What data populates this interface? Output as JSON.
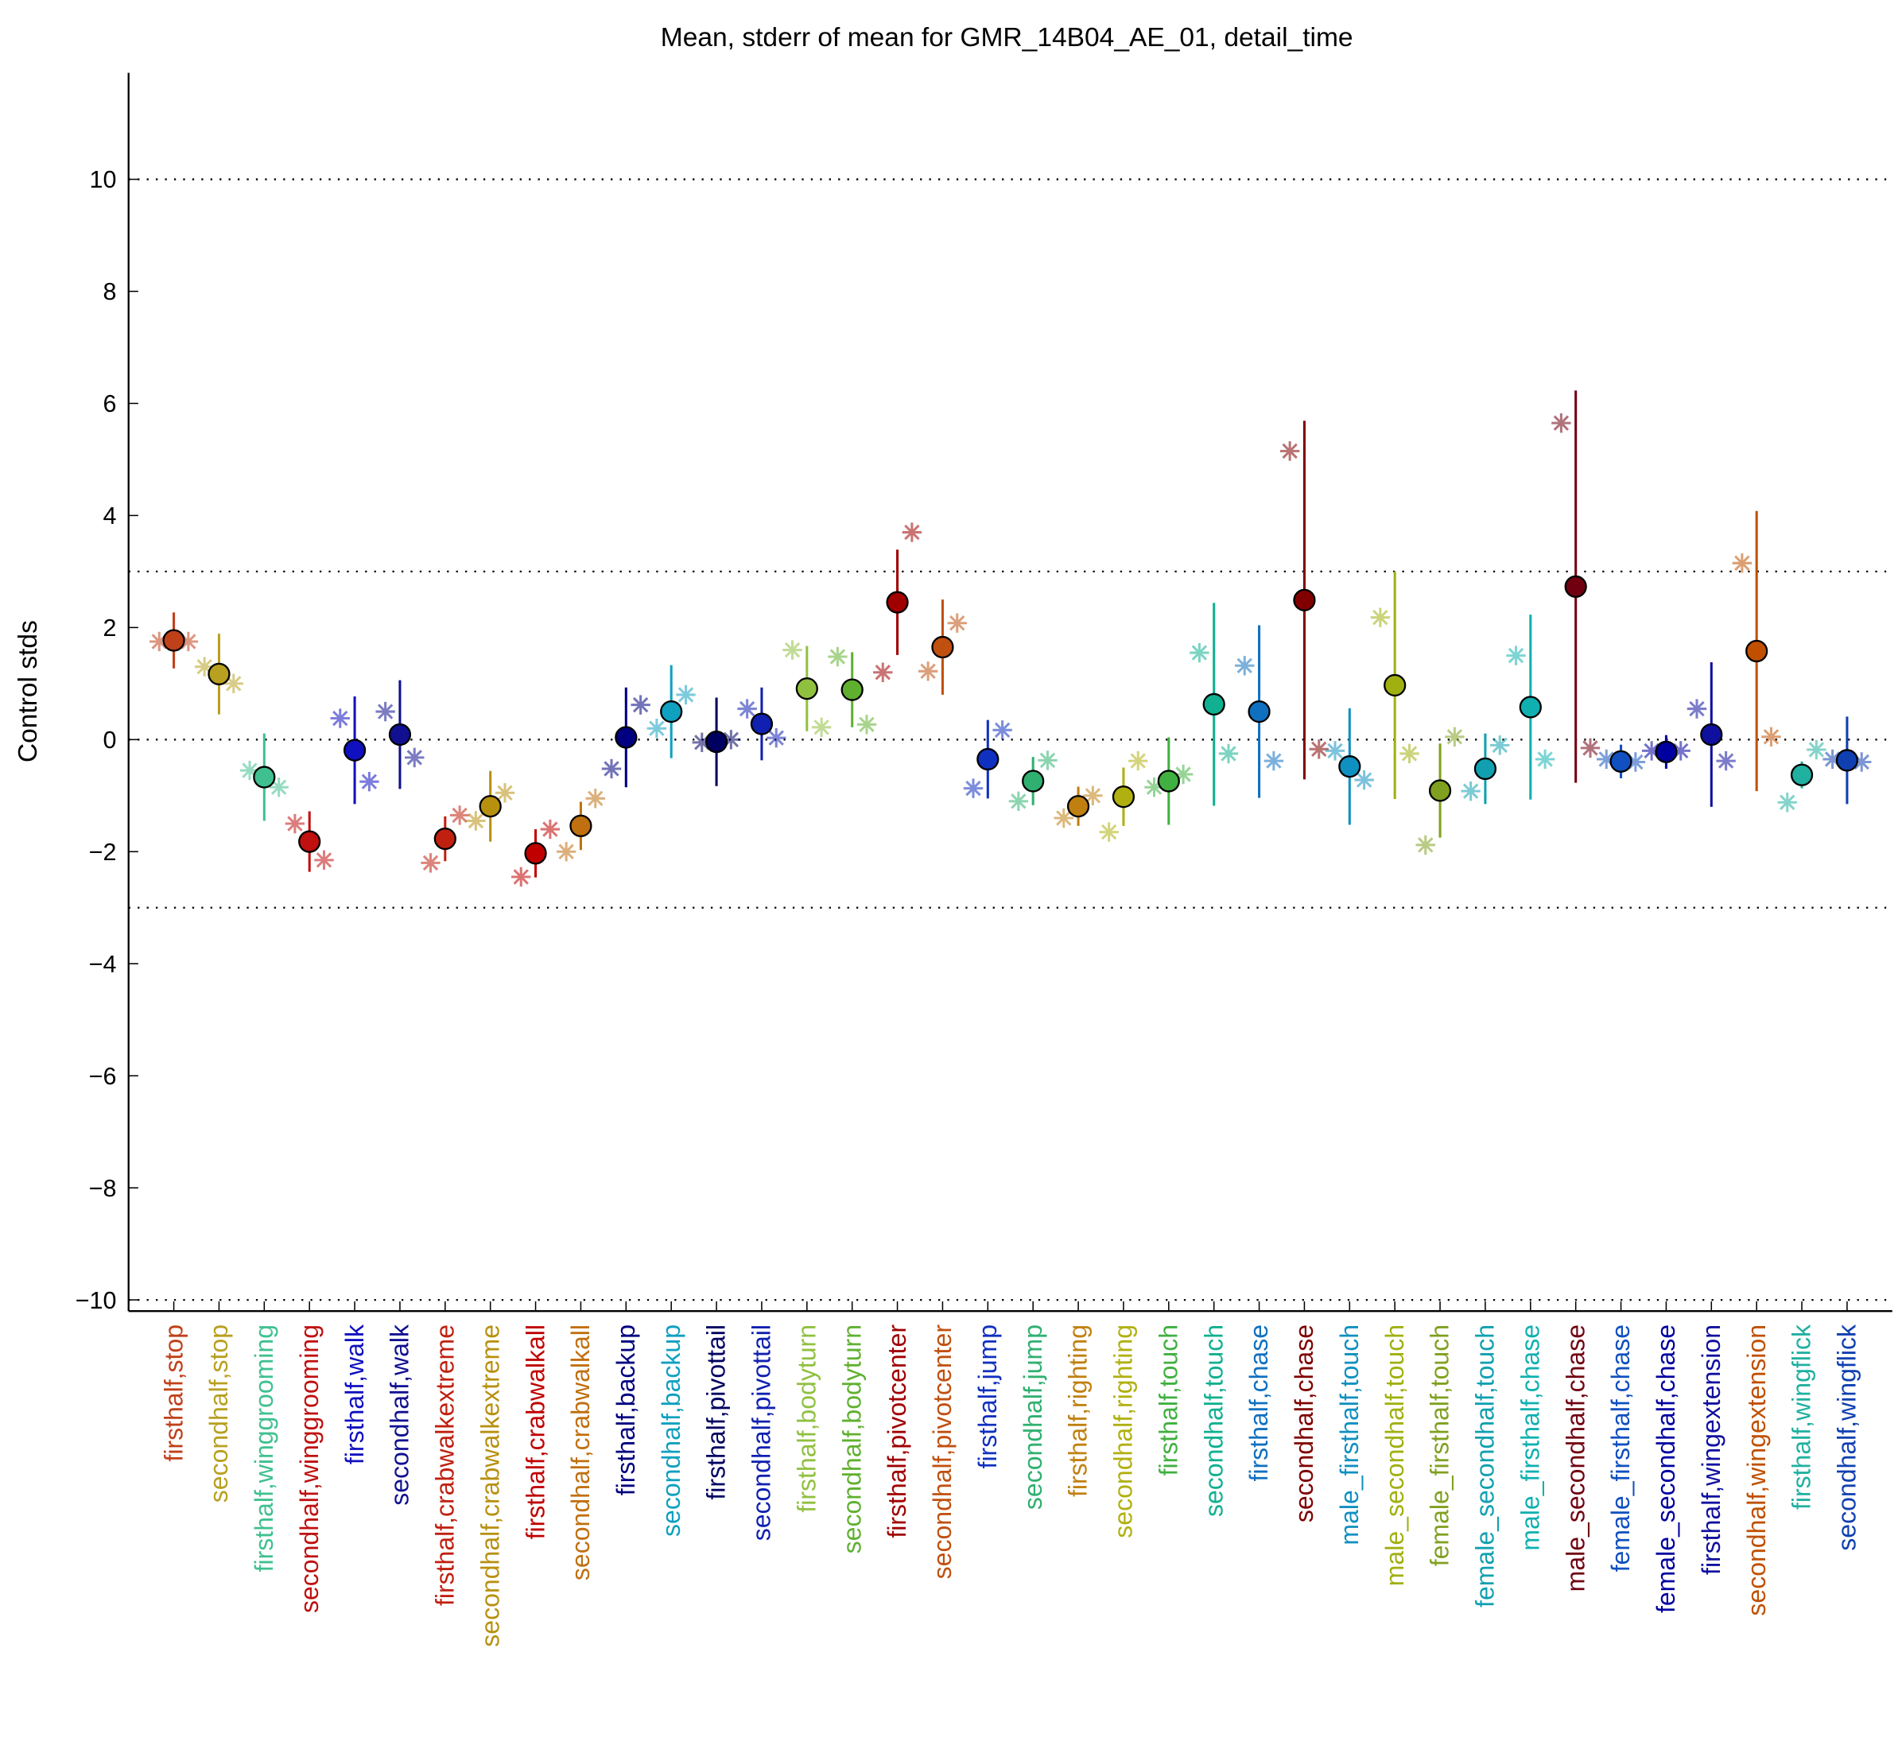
{
  "chart_data": {
    "type": "errorbar",
    "title": "Mean, stderr of mean for GMR_14B04_AE_01, detail_time",
    "ylabel": "Control stds",
    "categories": [
      "firsthalf,stop",
      "secondhalf,stop",
      "firsthalf,winggrooming",
      "secondhalf,winggrooming",
      "firsthalf,walk",
      "secondhalf,walk",
      "firsthalf,crabwalkextreme",
      "secondhalf,crabwalkextreme",
      "firsthalf,crabwalkall",
      "secondhalf,crabwalkall",
      "firsthalf,backup",
      "secondhalf,backup",
      "firsthalf,pivottail",
      "secondhalf,pivottail",
      "firsthalf,bodyturn",
      "secondhalf,bodyturn",
      "firsthalf,pivotcenter",
      "secondhalf,pivotcenter",
      "firsthalf,jump",
      "secondhalf,jump",
      "firsthalf,righting",
      "secondhalf,righting",
      "firsthalf,touch",
      "secondhalf,touch",
      "firsthalf,chase",
      "secondhalf,chase",
      "male_firsthalf,touch",
      "male_secondhalf,touch",
      "female_firsthalf,touch",
      "female_secondhalf,touch",
      "male_firsthalf,chase",
      "male_secondhalf,chase",
      "female_firsthalf,chase",
      "female_secondhalf,chase",
      "firsthalf,wingextension",
      "secondhalf,wingextension",
      "firsthalf,wingflick",
      "secondhalf,wingflick"
    ],
    "values": [
      1.77,
      1.17,
      -0.67,
      -1.82,
      -0.19,
      0.09,
      -1.77,
      -1.19,
      -2.03,
      -1.54,
      0.04,
      0.5,
      -0.04,
      0.28,
      0.91,
      0.89,
      2.45,
      1.65,
      -0.35,
      -0.74,
      -1.19,
      -1.02,
      -0.74,
      0.63,
      0.5,
      2.49,
      -0.48,
      0.97,
      -0.91,
      -0.52,
      0.58,
      2.73,
      -0.39,
      -0.22,
      0.09,
      1.58,
      -0.63,
      -0.37
    ],
    "errors": [
      0.5,
      0.72,
      0.78,
      0.54,
      0.96,
      0.97,
      0.4,
      0.63,
      0.43,
      0.43,
      0.89,
      0.83,
      0.79,
      0.65,
      0.76,
      0.67,
      0.94,
      0.85,
      0.7,
      0.43,
      0.35,
      0.52,
      0.78,
      1.81,
      1.54,
      3.2,
      1.04,
      2.03,
      0.84,
      0.63,
      1.65,
      3.5,
      0.3,
      0.3,
      1.29,
      2.5,
      0.24,
      0.78
    ],
    "marker_values_left": [
      1.75,
      1.3,
      -0.55,
      -1.5,
      0.38,
      0.5,
      -2.2,
      -1.45,
      -2.45,
      -2.0,
      -0.52,
      0.2,
      -0.05,
      0.55,
      1.6,
      1.48,
      1.2,
      1.22,
      -0.87,
      -1.1,
      -1.4,
      -1.65,
      -0.85,
      1.55,
      1.32,
      5.15,
      -0.2,
      2.18,
      -1.88,
      -0.92,
      1.5,
      5.65,
      -0.35,
      -0.2,
      0.55,
      3.15,
      -1.12,
      -0.35
    ],
    "marker_values_right": [
      1.75,
      1.0,
      -0.85,
      -2.15,
      -0.75,
      -0.32,
      -1.35,
      -0.95,
      -1.6,
      -1.05,
      0.62,
      0.8,
      0.0,
      0.03,
      0.22,
      0.27,
      3.7,
      2.08,
      0.17,
      -0.37,
      -1.0,
      -0.38,
      -0.62,
      -0.25,
      -0.38,
      -0.17,
      -0.72,
      -0.25,
      0.05,
      -0.1,
      -0.35,
      -0.15,
      -0.4,
      -0.2,
      -0.38,
      0.05,
      -0.18,
      -0.4
    ],
    "colors": [
      "#c0401a",
      "#b8a020",
      "#40c090",
      "#c01010",
      "#1010c0",
      "#101090",
      "#c02010",
      "#b89010",
      "#c00000",
      "#c07010",
      "#000080",
      "#10a0c0",
      "#000060",
      "#1020b0",
      "#90c040",
      "#60b030",
      "#a00000",
      "#c05010",
      "#1030c0",
      "#30b070",
      "#c08010",
      "#b0b010",
      "#40b040",
      "#10b090",
      "#1070c0",
      "#800000",
      "#1090c0",
      "#a0b010",
      "#80a020",
      "#10a0b0",
      "#10b0b0",
      "#700010",
      "#1050c0",
      "#0000a0",
      "#1010a0",
      "#c05000",
      "#20b0a0",
      "#1040b0"
    ],
    "ylim": [
      -10.2,
      11.9
    ],
    "yticks": [
      {
        "value": -10,
        "label": "−10"
      },
      {
        "value": -8,
        "label": "−8"
      },
      {
        "value": -6,
        "label": "−6"
      },
      {
        "value": -4,
        "label": "−4"
      },
      {
        "value": -2,
        "label": "−2"
      },
      0,
      2,
      4,
      6,
      8,
      10
    ],
    "hlines": [
      10,
      3,
      0,
      -3,
      -10
    ]
  }
}
